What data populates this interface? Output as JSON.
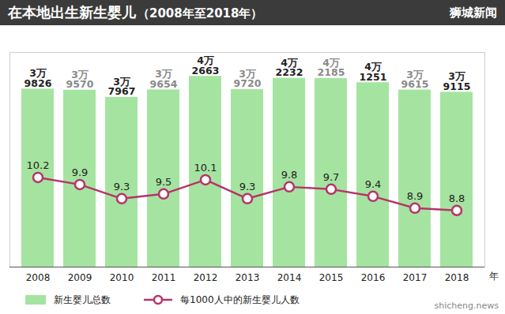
{
  "chart_data": {
    "type": "bar",
    "title": "在本地出生新生婴儿",
    "subtitle": "（2008年至2018年）",
    "annotations": [
      "狮城新闻",
      "shicheng.news"
    ],
    "categories": [
      "2008",
      "2009",
      "2010",
      "2011",
      "2012",
      "2013",
      "2014",
      "2015",
      "2016",
      "2017",
      "2018"
    ],
    "x_label": "年",
    "series": [
      {
        "name": "新生婴儿总数",
        "type": "bar",
        "color": "#a4e4a0",
        "values": [
          39826,
          39570,
          37967,
          39654,
          42663,
          39720,
          42232,
          42185,
          41251,
          39615,
          39115
        ],
        "value_labels": [
          "3万\n9826",
          "3万\n9570",
          "3万\n7967",
          "3万\n9654",
          "4万\n2663",
          "3万\n9720",
          "4万\n2232",
          "4万\n2185",
          "4万\n1251",
          "3万\n9615",
          "3万\n9115"
        ]
      },
      {
        "name": "每1000人中的新生婴儿人数",
        "type": "line",
        "axis": "y2",
        "color": "#b8336a",
        "marker": "circle",
        "values": [
          10.2,
          9.9,
          9.3,
          9.5,
          10.1,
          9.3,
          9.8,
          9.7,
          9.4,
          8.9,
          8.8
        ]
      }
    ],
    "ylim": [
      0,
      48000
    ],
    "y2lim": [
      6.4,
      15.5
    ],
    "data_labels": true,
    "tick_labels": "x",
    "legend": "bottom"
  }
}
